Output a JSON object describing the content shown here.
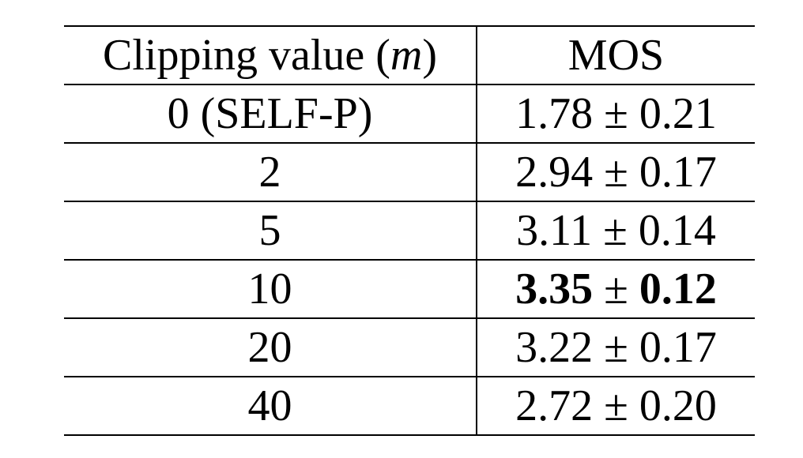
{
  "table": {
    "headers": {
      "col1_prefix": "Clipping value (",
      "col1_var": "m",
      "col1_suffix": ")",
      "col2": "MOS"
    },
    "rows": [
      {
        "clip": "0 (SELF-P)",
        "mean": "1.78",
        "pm": "±",
        "std": "0.21",
        "bold": false
      },
      {
        "clip": "2",
        "mean": "2.94",
        "pm": "±",
        "std": "0.17",
        "bold": false
      },
      {
        "clip": "5",
        "mean": "3.11",
        "pm": "±",
        "std": "0.14",
        "bold": false
      },
      {
        "clip": "10",
        "mean": "3.35",
        "pm": "±",
        "std": "0.12",
        "bold": true
      },
      {
        "clip": "20",
        "mean": "3.22",
        "pm": "±",
        "std": "0.17",
        "bold": false
      },
      {
        "clip": "40",
        "mean": "2.72",
        "pm": "±",
        "std": "0.20",
        "bold": false
      }
    ]
  }
}
